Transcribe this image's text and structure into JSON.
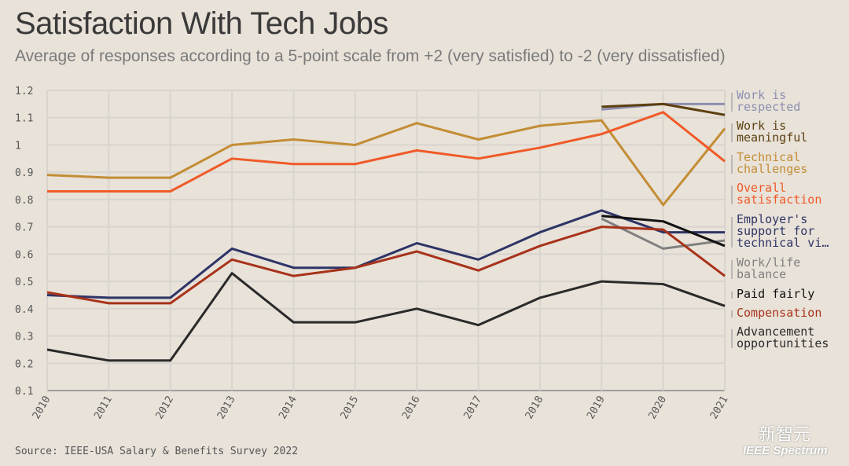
{
  "title": "Satisfaction With Tech Jobs",
  "subtitle": "Average of responses according to a 5-point scale from +2 (very satisfied) to -2 (very dissatisfied)",
  "source": "Source: IEEE-USA Salary & Benefits Survey 2022",
  "watermarks": [
    "新智元",
    "IEEE Spectrum"
  ],
  "chart_data": {
    "type": "line",
    "title": "Satisfaction With Tech Jobs",
    "x": [
      2010,
      2011,
      2012,
      2013,
      2014,
      2015,
      2016,
      2017,
      2018,
      2019,
      2020,
      2021
    ],
    "ylim": [
      0.1,
      1.2
    ],
    "yticks": [
      "0.1",
      "0.2",
      "0.3",
      "0.4",
      "0.5",
      "0.6",
      "0.7",
      "0.8",
      "0.9",
      "1",
      "1.1",
      "1.2"
    ],
    "grid": true,
    "legend": "right (direct labels)",
    "series": [
      {
        "name": "Work is respected",
        "color": "#8e8fb0",
        "values": [
          null,
          null,
          null,
          null,
          null,
          null,
          null,
          null,
          null,
          1.13,
          1.15,
          1.15
        ]
      },
      {
        "name": "Work is meaningful",
        "color": "#5c3f10",
        "values": [
          null,
          null,
          null,
          null,
          null,
          null,
          null,
          null,
          null,
          1.14,
          1.15,
          1.11
        ]
      },
      {
        "name": "Technical challenges",
        "color": "#c38d35",
        "values": [
          0.89,
          0.88,
          0.88,
          1.0,
          1.02,
          1.0,
          1.08,
          1.02,
          1.07,
          1.09,
          0.78,
          1.06
        ]
      },
      {
        "name": "Overall satisfaction",
        "color": "#f05a28",
        "values": [
          0.83,
          0.83,
          0.83,
          0.95,
          0.93,
          0.93,
          0.98,
          0.95,
          0.99,
          1.04,
          1.12,
          0.94
        ]
      },
      {
        "name": "Employer's support for technical vi…",
        "color": "#2e3466",
        "values": [
          0.45,
          0.44,
          0.44,
          0.62,
          0.55,
          0.55,
          0.64,
          0.58,
          0.68,
          0.76,
          0.68,
          0.68
        ]
      },
      {
        "name": "Work/life balance",
        "color": "#808080",
        "values": [
          null,
          null,
          null,
          null,
          null,
          null,
          null,
          null,
          null,
          0.73,
          0.62,
          0.65
        ]
      },
      {
        "name": "Paid fairly",
        "color": "#111111",
        "values": [
          null,
          null,
          null,
          null,
          null,
          null,
          null,
          null,
          null,
          0.74,
          0.72,
          0.63
        ]
      },
      {
        "name": "Compensation",
        "color": "#a8321a",
        "values": [
          0.46,
          0.42,
          0.42,
          0.58,
          0.52,
          0.55,
          0.61,
          0.54,
          0.63,
          0.7,
          0.69,
          0.52
        ]
      },
      {
        "name": "Advancement opportunities",
        "color": "#2a2a2a",
        "values": [
          0.25,
          0.21,
          0.21,
          0.53,
          0.35,
          0.35,
          0.4,
          0.34,
          0.44,
          0.5,
          0.49,
          0.41
        ]
      }
    ]
  }
}
